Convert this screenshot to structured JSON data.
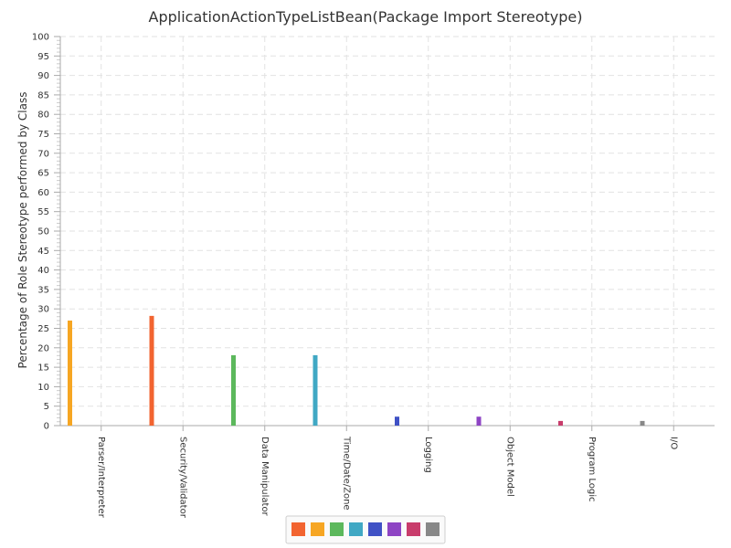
{
  "chart_data": {
    "type": "bar",
    "title": "ApplicationActionTypeListBean(Package Import Stereotype)",
    "xlabel": "",
    "ylabel": "Percentage of Role Stereotype performed by Class",
    "ylim": [
      0,
      100
    ],
    "ytick_step": 5,
    "grid": true,
    "legend": "bottom",
    "categories": [
      "Parser/Interpreter",
      "Security/Validator",
      "Data Manipulator",
      "Time/Date/Zone",
      "Logging",
      "Object Model",
      "Program Logic",
      "I/O"
    ],
    "values": [
      27,
      28.2,
      18.1,
      18.1,
      2.3,
      2.3,
      1.2,
      1.2
    ],
    "colors": [
      "#f6a623",
      "#f26430",
      "#5cb85c",
      "#40a8c4",
      "#3f51c5",
      "#8e44c4",
      "#c83c6b",
      "#888888"
    ],
    "legend_colors": [
      "#f26430",
      "#f6a623",
      "#5cb85c",
      "#40a8c4",
      "#3f51c5",
      "#8e44c4",
      "#c83c6b",
      "#888888"
    ]
  }
}
